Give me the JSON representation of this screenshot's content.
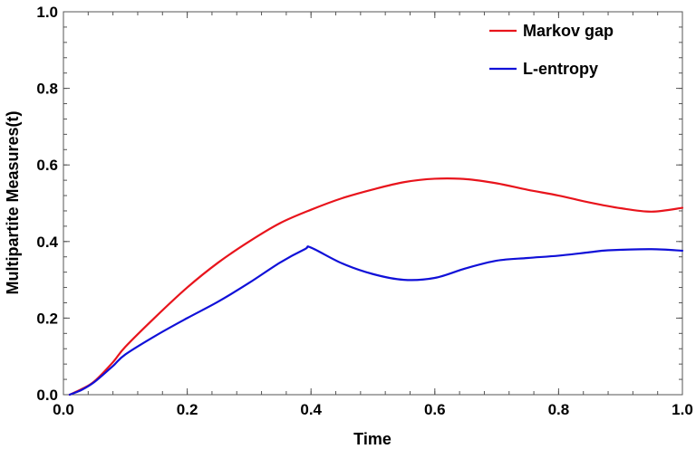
{
  "chart_data": {
    "type": "line",
    "title": "",
    "xlabel": "Time",
    "ylabel": "Multipartite Measures(t)",
    "xlim": [
      0,
      1
    ],
    "ylim": [
      0,
      1
    ],
    "xticks": [
      "0.0",
      "0.2",
      "0.4",
      "0.6",
      "0.8",
      "1.0"
    ],
    "yticks": [
      "0.0",
      "0.2",
      "0.4",
      "0.6",
      "0.8",
      "1.0"
    ],
    "grid": false,
    "legend_position": "top-right",
    "series": [
      {
        "name": "Markov gap",
        "color": "#e8141c",
        "x": [
          0.01,
          0.03,
          0.05,
          0.08,
          0.1,
          0.15,
          0.2,
          0.25,
          0.3,
          0.35,
          0.4,
          0.45,
          0.5,
          0.55,
          0.6,
          0.65,
          0.7,
          0.75,
          0.8,
          0.85,
          0.9,
          0.95,
          1.0
        ],
        "y": [
          0.0,
          0.015,
          0.035,
          0.085,
          0.125,
          0.205,
          0.28,
          0.345,
          0.4,
          0.448,
          0.483,
          0.513,
          0.536,
          0.555,
          0.564,
          0.563,
          0.552,
          0.535,
          0.52,
          0.502,
          0.487,
          0.478,
          0.488
        ]
      },
      {
        "name": "L-entropy",
        "color": "#1010d8",
        "x": [
          0.01,
          0.03,
          0.05,
          0.08,
          0.1,
          0.15,
          0.2,
          0.25,
          0.3,
          0.35,
          0.39,
          0.4,
          0.45,
          0.5,
          0.55,
          0.6,
          0.65,
          0.7,
          0.75,
          0.8,
          0.85,
          0.88,
          0.95,
          1.0
        ],
        "y": [
          0.0,
          0.013,
          0.033,
          0.075,
          0.105,
          0.155,
          0.2,
          0.243,
          0.292,
          0.345,
          0.38,
          0.384,
          0.343,
          0.315,
          0.3,
          0.305,
          0.33,
          0.35,
          0.357,
          0.363,
          0.372,
          0.377,
          0.38,
          0.376
        ]
      }
    ]
  }
}
